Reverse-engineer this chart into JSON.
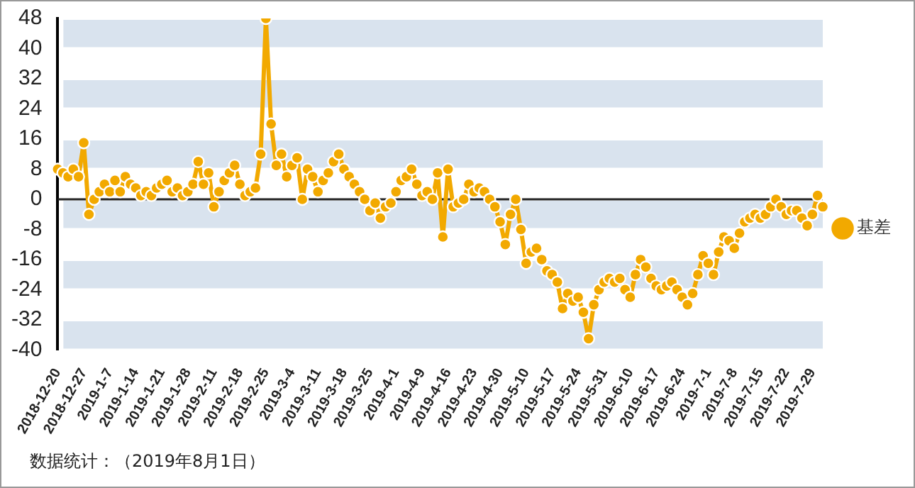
{
  "chart_data": {
    "type": "line",
    "categories": [
      "2018-12-20",
      null,
      null,
      null,
      null,
      "2018-12-27",
      null,
      null,
      null,
      null,
      "2019-1-7",
      null,
      null,
      null,
      null,
      "2019-1-14",
      null,
      null,
      null,
      null,
      "2019-1-21",
      null,
      null,
      null,
      null,
      "2019-1-28",
      null,
      null,
      null,
      null,
      "2019-2-11",
      null,
      null,
      null,
      null,
      "2019-2-18",
      null,
      null,
      null,
      null,
      "2019-2-25",
      null,
      null,
      null,
      null,
      "2019-3-4",
      null,
      null,
      null,
      null,
      "2019-3-11",
      null,
      null,
      null,
      null,
      "2019-3-18",
      null,
      null,
      null,
      null,
      "2019-3-25",
      null,
      null,
      null,
      null,
      "2019-4-1",
      null,
      null,
      null,
      null,
      "2019-4-9",
      null,
      null,
      null,
      null,
      "2019-4-16",
      null,
      null,
      null,
      null,
      "2019-4-23",
      null,
      null,
      null,
      null,
      "2019-4-30",
      null,
      null,
      null,
      null,
      "2019-5-10",
      null,
      null,
      null,
      null,
      "2019-5-17",
      null,
      null,
      null,
      null,
      "2019-5-24",
      null,
      null,
      null,
      null,
      "2019-5-31",
      null,
      null,
      null,
      null,
      "2019-6-10",
      null,
      null,
      null,
      null,
      "2019-6-17",
      null,
      null,
      null,
      null,
      "2019-6-24",
      null,
      null,
      null,
      null,
      "2019-7-1",
      null,
      null,
      null,
      null,
      "2019-7-8",
      null,
      null,
      null,
      null,
      "2019-7-15",
      null,
      null,
      null,
      null,
      "2019-7-22",
      null,
      null,
      null,
      null,
      "2019-7-29",
      null,
      null
    ],
    "series": [
      {
        "name": "基差",
        "color": "#f2a900",
        "values": [
          8,
          7,
          6,
          8,
          6,
          15,
          -4,
          0,
          2,
          4,
          2,
          5,
          2,
          6,
          4,
          3,
          1,
          2,
          1,
          3,
          4,
          5,
          2,
          3,
          1,
          2,
          4,
          10,
          4,
          7,
          -2,
          2,
          5,
          7,
          9,
          4,
          1,
          2,
          3,
          12,
          48,
          20,
          9,
          12,
          6,
          9,
          11,
          0,
          8,
          6,
          2,
          5,
          7,
          10,
          12,
          8,
          6,
          4,
          2,
          0,
          -3,
          -1,
          -5,
          -2,
          -1,
          2,
          5,
          6,
          8,
          4,
          1,
          2,
          0,
          7,
          -10,
          8,
          -2,
          -1,
          0,
          4,
          2,
          3,
          2,
          0,
          -2,
          -6,
          -12,
          -4,
          0,
          -8,
          -17,
          -14,
          -13,
          -16,
          -19,
          -20,
          -22,
          -29,
          -25,
          -27,
          -26,
          -30,
          -37,
          -28,
          -24,
          -22,
          -21,
          -22,
          -21,
          -24,
          -26,
          -20,
          -16,
          -18,
          -21,
          -23,
          -24,
          -23,
          -22,
          -24,
          -26,
          -28,
          -25,
          -20,
          -15,
          -17,
          -20,
          -14,
          -10,
          -11,
          -13,
          -9,
          -6,
          -5,
          -4,
          -5,
          -4,
          -2,
          0,
          -2,
          -4,
          -3,
          -3,
          -5,
          -7,
          -4,
          1,
          -2
        ]
      }
    ],
    "ylim": [
      -40,
      48
    ],
    "yticks": [
      -40,
      -32,
      -24,
      -16,
      -8,
      0,
      8,
      16,
      24,
      32,
      40,
      48
    ],
    "grid": "y",
    "legend": "right",
    "marker": "circle",
    "line_style": "solid",
    "annotations": [
      "数据统计：（2019年8月1日）"
    ]
  }
}
